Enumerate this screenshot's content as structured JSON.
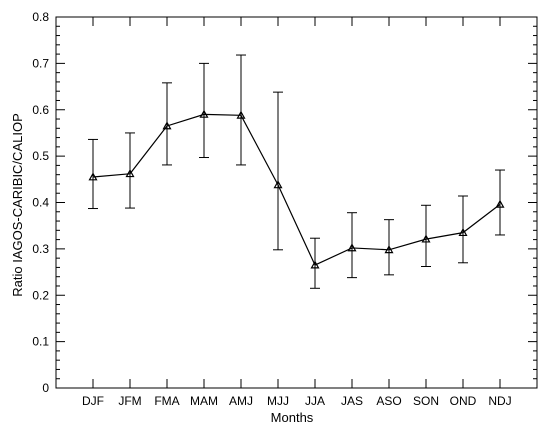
{
  "chart_data": {
    "type": "line",
    "title": "",
    "xlabel": "Months",
    "ylabel": "Ratio IAGOS-CARIBIC/CALIOP",
    "categories": [
      "DJF",
      "JFM",
      "FMA",
      "MAM",
      "AMJ",
      "MJJ",
      "JJA",
      "JAS",
      "ASO",
      "SON",
      "OND",
      "NDJ"
    ],
    "ylim": [
      0,
      0.8
    ],
    "yticks": [
      "0",
      "0.1",
      "0.2",
      "0.3",
      "0.4",
      "0.5",
      "0.6",
      "0.7",
      "0.8"
    ],
    "grid": false,
    "legend": "none",
    "series": [
      {
        "values": [
          0.455,
          0.462,
          0.565,
          0.59,
          0.588,
          0.438,
          0.265,
          0.302,
          0.298,
          0.321,
          0.335,
          0.396
        ],
        "error_low": [
          0.387,
          0.388,
          0.481,
          0.497,
          0.481,
          0.298,
          0.215,
          0.238,
          0.244,
          0.262,
          0.27,
          0.33
        ],
        "error_high": [
          0.536,
          0.55,
          0.658,
          0.7,
          0.718,
          0.638,
          0.323,
          0.378,
          0.363,
          0.394,
          0.414,
          0.47
        ],
        "marker": "triangle",
        "color": "#000000"
      }
    ]
  }
}
